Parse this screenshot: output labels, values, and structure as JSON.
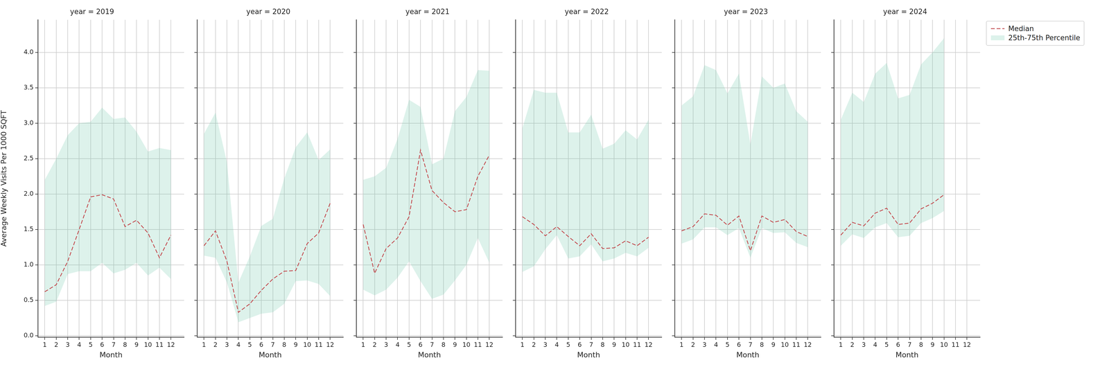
{
  "chart_data": [
    {
      "type": "line",
      "title": "year = 2019",
      "xlabel": "Month",
      "ylabel": "Average Weekly Visits Per 1000 SQFT",
      "x": [
        1,
        2,
        3,
        4,
        5,
        6,
        7,
        8,
        9,
        10,
        11,
        12
      ],
      "series": [
        {
          "name": "Median",
          "color": "#c44e52",
          "line_style": "dashed",
          "values": [
            0.62,
            0.72,
            1.05,
            1.5,
            1.96,
            1.99,
            1.93,
            1.54,
            1.63,
            1.45,
            1.1,
            1.42
          ]
        },
        {
          "name": "25th-75th Percentile",
          "type": "area",
          "color": "#66c2a5",
          "lower": [
            0.42,
            0.48,
            0.87,
            0.91,
            0.91,
            1.03,
            0.88,
            0.93,
            1.03,
            0.85,
            0.96,
            0.8
          ],
          "upper": [
            2.2,
            2.5,
            2.83,
            3.0,
            3.02,
            3.22,
            3.06,
            3.08,
            2.88,
            2.6,
            2.65,
            2.62
          ]
        }
      ],
      "xlim": [
        0.4,
        13.15
      ],
      "xticks": [
        1,
        2,
        3,
        4,
        5,
        6,
        7,
        8,
        9,
        10,
        11,
        12
      ],
      "ylim": [
        -0.02,
        4.46
      ],
      "yticks": [
        {
          "value": 0,
          "label": "0.0"
        },
        0.5,
        {
          "value": 1,
          "label": "1.0"
        },
        1.5,
        {
          "value": 2,
          "label": "2.0"
        },
        2.5,
        {
          "value": 3,
          "label": "3.0"
        },
        3.5,
        {
          "value": 4,
          "label": "4.0"
        }
      ],
      "grid": true
    },
    {
      "type": "line",
      "title": "year = 2020",
      "xlabel": "Month",
      "x": [
        1,
        2,
        3,
        4,
        5,
        6,
        7,
        8,
        9,
        10,
        11,
        12
      ],
      "series": [
        {
          "name": "Median",
          "color": "#c44e52",
          "line_style": "dashed",
          "values": [
            1.27,
            1.48,
            1.05,
            0.33,
            0.45,
            0.64,
            0.8,
            0.91,
            0.92,
            1.3,
            1.45,
            1.87
          ]
        },
        {
          "name": "25th-75th Percentile",
          "type": "area",
          "color": "#66c2a5",
          "lower": [
            1.13,
            1.1,
            0.75,
            0.19,
            0.25,
            0.31,
            0.33,
            0.45,
            0.77,
            0.78,
            0.73,
            0.56
          ],
          "upper": [
            2.85,
            3.15,
            2.45,
            0.75,
            1.12,
            1.55,
            1.65,
            2.22,
            2.66,
            2.87,
            2.48,
            2.63
          ]
        }
      ],
      "xlim": [
        0.4,
        13.15
      ],
      "xticks": [
        1,
        2,
        3,
        4,
        5,
        6,
        7,
        8,
        9,
        10,
        11,
        12
      ],
      "ylim": [
        -0.02,
        4.46
      ],
      "yticks": [
        {
          "value": 0,
          "label": "0.0"
        },
        0.5,
        {
          "value": 1,
          "label": "1.0"
        },
        1.5,
        {
          "value": 2,
          "label": "2.0"
        },
        2.5,
        {
          "value": 3,
          "label": "3.0"
        },
        3.5,
        {
          "value": 4,
          "label": "4.0"
        }
      ],
      "grid": true,
      "tick_labels": "x"
    },
    {
      "type": "line",
      "title": "year = 2021",
      "xlabel": "Month",
      "x": [
        1,
        2,
        3,
        4,
        5,
        6,
        7,
        8,
        9,
        10,
        11,
        12
      ],
      "series": [
        {
          "name": "Median",
          "color": "#c44e52",
          "line_style": "dashed",
          "values": [
            1.57,
            0.88,
            1.23,
            1.38,
            1.68,
            2.62,
            2.05,
            1.88,
            1.75,
            1.78,
            2.25,
            2.55
          ]
        },
        {
          "name": "25th-75th Percentile",
          "type": "area",
          "color": "#66c2a5",
          "lower": [
            0.65,
            0.57,
            0.65,
            0.82,
            1.05,
            0.77,
            0.52,
            0.58,
            0.78,
            1.0,
            1.38,
            1.03
          ],
          "upper": [
            2.2,
            2.25,
            2.37,
            2.78,
            3.33,
            3.23,
            2.42,
            2.5,
            3.17,
            3.37,
            3.75,
            3.74
          ]
        }
      ],
      "xlim": [
        0.4,
        13.15
      ],
      "xticks": [
        1,
        2,
        3,
        4,
        5,
        6,
        7,
        8,
        9,
        10,
        11,
        12
      ],
      "ylim": [
        -0.02,
        4.46
      ],
      "yticks": [
        {
          "value": 0,
          "label": "0.0"
        },
        0.5,
        {
          "value": 1,
          "label": "1.0"
        },
        1.5,
        {
          "value": 2,
          "label": "2.0"
        },
        2.5,
        {
          "value": 3,
          "label": "3.0"
        },
        3.5,
        {
          "value": 4,
          "label": "4.0"
        }
      ],
      "grid": true,
      "tick_labels": "x"
    },
    {
      "type": "line",
      "title": "year = 2022",
      "xlabel": "Month",
      "x": [
        1,
        2,
        3,
        4,
        5,
        6,
        7,
        8,
        9,
        10,
        11,
        12
      ],
      "series": [
        {
          "name": "Median",
          "color": "#c44e52",
          "line_style": "dashed",
          "values": [
            1.68,
            1.57,
            1.41,
            1.54,
            1.4,
            1.27,
            1.44,
            1.23,
            1.24,
            1.34,
            1.27,
            1.39
          ]
        },
        {
          "name": "25th-75th Percentile",
          "type": "area",
          "color": "#66c2a5",
          "lower": [
            0.9,
            0.98,
            1.22,
            1.42,
            1.09,
            1.12,
            1.29,
            1.05,
            1.09,
            1.17,
            1.12,
            1.24
          ],
          "upper": [
            2.93,
            3.47,
            3.43,
            3.43,
            2.87,
            2.87,
            3.12,
            2.64,
            2.71,
            2.9,
            2.77,
            3.05
          ]
        }
      ],
      "xlim": [
        0.4,
        13.15
      ],
      "xticks": [
        1,
        2,
        3,
        4,
        5,
        6,
        7,
        8,
        9,
        10,
        11,
        12
      ],
      "ylim": [
        -0.02,
        4.46
      ],
      "yticks": [
        {
          "value": 0,
          "label": "0.0"
        },
        0.5,
        {
          "value": 1,
          "label": "1.0"
        },
        1.5,
        {
          "value": 2,
          "label": "2.0"
        },
        2.5,
        {
          "value": 3,
          "label": "3.0"
        },
        3.5,
        {
          "value": 4,
          "label": "4.0"
        }
      ],
      "grid": true,
      "tick_labels": "x"
    },
    {
      "type": "line",
      "title": "year = 2023",
      "xlabel": "Month",
      "x": [
        1,
        2,
        3,
        4,
        5,
        6,
        7,
        8,
        9,
        10,
        11,
        12
      ],
      "series": [
        {
          "name": "Median",
          "color": "#c44e52",
          "line_style": "dashed",
          "values": [
            1.48,
            1.54,
            1.72,
            1.7,
            1.56,
            1.69,
            1.2,
            1.69,
            1.6,
            1.64,
            1.47,
            1.4
          ]
        },
        {
          "name": "25th-75th Percentile",
          "type": "area",
          "color": "#66c2a5",
          "lower": [
            1.3,
            1.36,
            1.53,
            1.53,
            1.42,
            1.52,
            1.1,
            1.52,
            1.45,
            1.46,
            1.31,
            1.25
          ],
          "upper": [
            3.25,
            3.38,
            3.82,
            3.75,
            3.42,
            3.7,
            2.7,
            3.66,
            3.5,
            3.56,
            3.17,
            3.02
          ]
        }
      ],
      "xlim": [
        0.4,
        13.15
      ],
      "xticks": [
        1,
        2,
        3,
        4,
        5,
        6,
        7,
        8,
        9,
        10,
        11,
        12
      ],
      "ylim": [
        -0.02,
        4.46
      ],
      "yticks": [
        {
          "value": 0,
          "label": "0.0"
        },
        0.5,
        {
          "value": 1,
          "label": "1.0"
        },
        1.5,
        {
          "value": 2,
          "label": "2.0"
        },
        2.5,
        {
          "value": 3,
          "label": "3.0"
        },
        3.5,
        {
          "value": 4,
          "label": "4.0"
        }
      ],
      "grid": true,
      "tick_labels": "x"
    },
    {
      "type": "line",
      "title": "year = 2024",
      "xlabel": "Month",
      "x": [
        1,
        2,
        3,
        4,
        5,
        6,
        7,
        8,
        9,
        10,
        11,
        12
      ],
      "series": [
        {
          "name": "Median",
          "color": "#c44e52",
          "line_style": "dashed",
          "values": [
            1.42,
            1.6,
            1.55,
            1.73,
            1.8,
            1.57,
            1.59,
            1.79,
            1.87,
            1.99,
            null,
            null
          ]
        },
        {
          "name": "25th-75th Percentile",
          "type": "area",
          "color": "#66c2a5",
          "lower": [
            1.27,
            1.43,
            1.38,
            1.53,
            1.59,
            1.39,
            1.41,
            1.59,
            1.66,
            1.76,
            null,
            null
          ],
          "upper": [
            3.05,
            3.43,
            3.3,
            3.7,
            3.85,
            3.35,
            3.4,
            3.83,
            4.0,
            4.2,
            null,
            null
          ]
        }
      ],
      "xlim": [
        0.4,
        13.15
      ],
      "xticks": [
        1,
        2,
        3,
        4,
        5,
        6,
        7,
        8,
        9,
        10,
        11,
        12
      ],
      "ylim": [
        -0.02,
        4.46
      ],
      "yticks": [
        {
          "value": 0,
          "label": "0.0"
        },
        0.5,
        {
          "value": 1,
          "label": "1.0"
        },
        1.5,
        {
          "value": 2,
          "label": "2.0"
        },
        2.5,
        {
          "value": 3,
          "label": "3.0"
        },
        3.5,
        {
          "value": 4,
          "label": "4.0"
        }
      ],
      "grid": true,
      "tick_labels": "x",
      "legend": "upper right"
    }
  ]
}
